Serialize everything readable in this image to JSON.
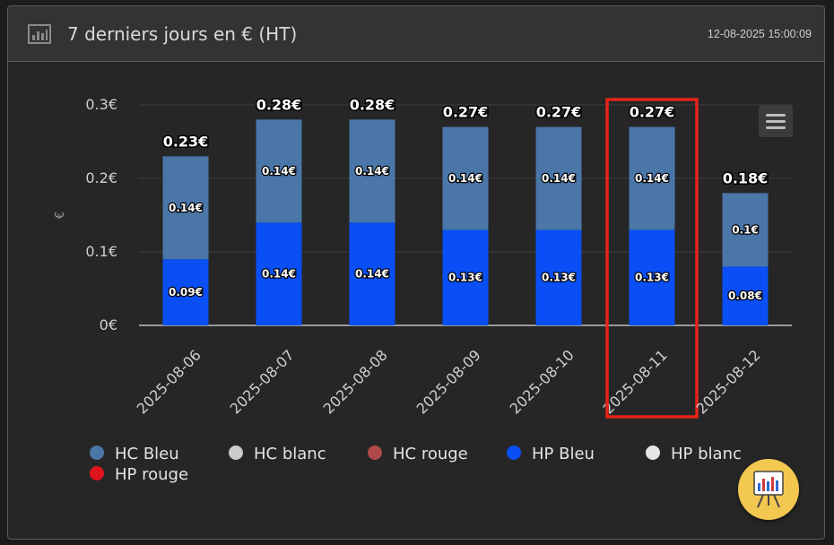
{
  "header": {
    "title": "7 derniers jours en € (HT)",
    "timestamp": "12-08-2025 15:00:09",
    "icon": "bar-chart-icon"
  },
  "chart_data": {
    "type": "bar",
    "stacked": true,
    "ylabel": "€",
    "ylim": [
      0,
      0.3
    ],
    "yticks": [
      "0€",
      "0.1€",
      "0.2€",
      "0.3€"
    ],
    "categories": [
      "2025-08-06",
      "2025-08-07",
      "2025-08-08",
      "2025-08-09",
      "2025-08-10",
      "2025-08-11",
      "2025-08-12"
    ],
    "totals": [
      "0.23€",
      "0.28€",
      "0.28€",
      "0.27€",
      "0.27€",
      "0.27€",
      "0.18€"
    ],
    "series": [
      {
        "name": "HP Bleu",
        "color": "#0a4ff5",
        "values": [
          0.09,
          0.14,
          0.14,
          0.13,
          0.13,
          0.13,
          0.08
        ],
        "labels": [
          "0.09€",
          "0.14€",
          "0.14€",
          "0.13€",
          "0.13€",
          "0.13€",
          "0.08€"
        ]
      },
      {
        "name": "HC Bleu",
        "color": "#4a76a8",
        "values": [
          0.14,
          0.14,
          0.14,
          0.14,
          0.14,
          0.14,
          0.1
        ],
        "labels": [
          "0.14€",
          "0.14€",
          "0.14€",
          "0.14€",
          "0.14€",
          "0.14€",
          "0.1€"
        ]
      }
    ],
    "grid": true,
    "legend": {
      "position": "bottom",
      "items": [
        {
          "name": "HC Bleu",
          "color": "#4a76a8"
        },
        {
          "name": "HC blanc",
          "color": "#cccccc"
        },
        {
          "name": "HC rouge",
          "color": "#b04a4a"
        },
        {
          "name": "HP Bleu",
          "color": "#0a4ff5"
        },
        {
          "name": "HP blanc",
          "color": "#e6e6e6"
        },
        {
          "name": "HP rouge",
          "color": "#e0141e"
        }
      ]
    },
    "highlight_category": "2025-08-11",
    "highlight_color": "#e5241a"
  },
  "controls": {
    "menu_icon": "hamburger-menu-icon",
    "fab_icon": "presentation-chart-icon"
  }
}
